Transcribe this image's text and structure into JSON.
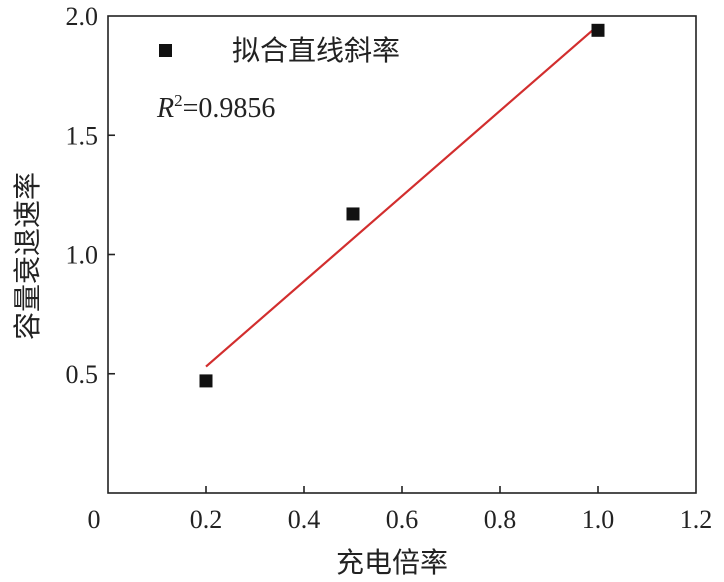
{
  "chart_data": {
    "type": "scatter",
    "xlabel": "充电倍率",
    "ylabel": "容量衰退速率",
    "xlim": [
      0,
      1.2
    ],
    "ylim": [
      0,
      2.0
    ],
    "x_ticks": [
      "0",
      "0.2",
      "0.4",
      "0.6",
      "0.8",
      "1.0",
      "1.2"
    ],
    "y_ticks": [
      "0.5",
      "1.0",
      "1.5",
      "2.0"
    ],
    "series": [
      {
        "name": "拟合直线斜率",
        "marker": "square",
        "color": "#111111",
        "points": [
          {
            "x": 0.2,
            "y": 0.47
          },
          {
            "x": 0.5,
            "y": 1.17
          },
          {
            "x": 1.0,
            "y": 1.94
          }
        ]
      }
    ],
    "fit_line": {
      "color": "#d22e2e",
      "points": [
        {
          "x": 0.2,
          "y": 0.53
        },
        {
          "x": 1.0,
          "y": 1.96
        }
      ]
    },
    "annotation": {
      "r_symbol": "R",
      "superscript": "2",
      "value_text": "=0.9856"
    },
    "legend": "top-left",
    "grid": false
  }
}
